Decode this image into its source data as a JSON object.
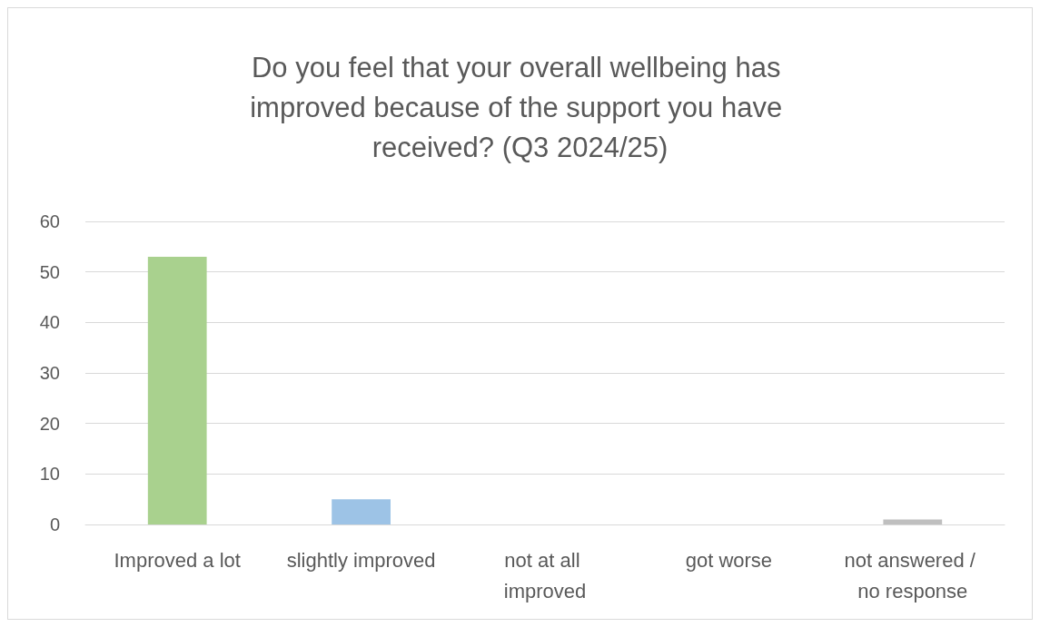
{
  "chart_data": {
    "type": "bar",
    "title": "Do you feel that your overall wellbeing has improved because of the support you have received? (Q3 2024/25)",
    "categories": [
      "Improved a lot",
      "slightly improved",
      "not at all improved",
      "got worse",
      "not answered / no response"
    ],
    "values": [
      53,
      5,
      0,
      0,
      1
    ],
    "colors": [
      "#a9d18e",
      "#9dc3e6",
      "#a9d18e",
      "#9dc3e6",
      "#bfbfbf"
    ],
    "ylim": [
      0,
      60
    ],
    "yticks": [
      0,
      10,
      20,
      30,
      40,
      50,
      60
    ],
    "grid": "y"
  }
}
